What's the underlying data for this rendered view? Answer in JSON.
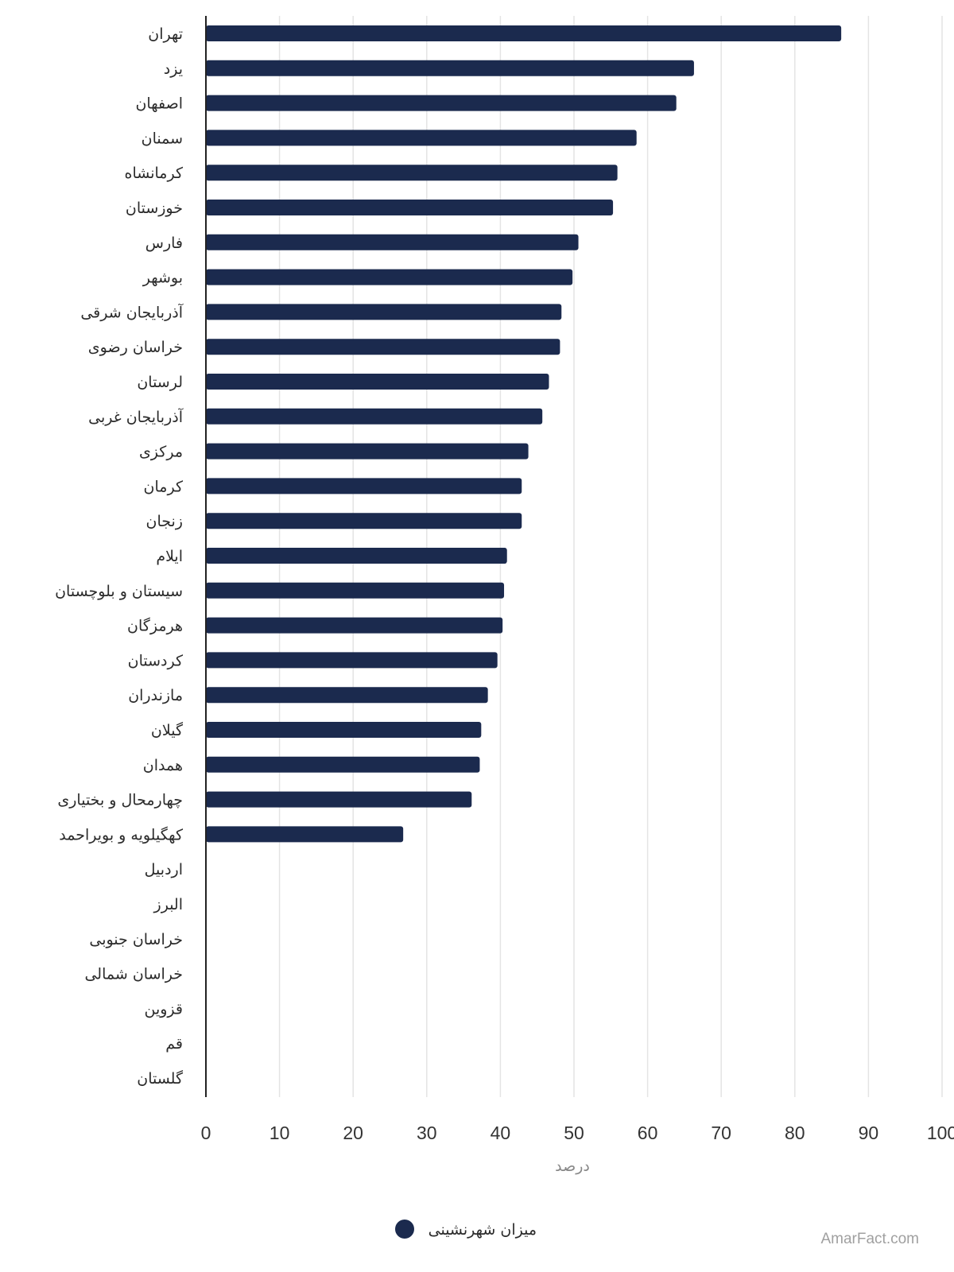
{
  "chart_data": {
    "type": "bar",
    "orientation": "horizontal",
    "categories": [
      "تهران",
      "یزد",
      "اصفهان",
      "سمنان",
      "کرمانشاه",
      "خوزستان",
      "فارس",
      "بوشهر",
      "آذربایجان شرقی",
      "خراسان رضوی",
      "لرستان",
      "آذربایجان غربی",
      "مرکزی",
      "کرمان",
      "زنجان",
      "ایلام",
      "سیستان و بلوچستان",
      "هرمزگان",
      "کردستان",
      "مازندران",
      "گیلان",
      "همدان",
      "چهارمحال و بختیاری",
      "کهگیلویه و بویراحمد",
      "اردبیل",
      "البرز",
      "خراسان جنوبی",
      "خراسان شمالی",
      "قزوین",
      "قم",
      "گلستان"
    ],
    "series": [
      {
        "name": "میزان شهرنشینی",
        "color": "#1b2a4e",
        "values": [
          86.3,
          66.3,
          63.9,
          58.5,
          55.9,
          55.3,
          50.6,
          49.8,
          48.3,
          48.1,
          46.6,
          45.7,
          43.8,
          42.9,
          42.9,
          40.9,
          40.5,
          40.3,
          39.6,
          38.3,
          37.4,
          37.2,
          36.1,
          26.8,
          null,
          null,
          null,
          null,
          null,
          null,
          null
        ]
      }
    ],
    "xlabel": "درصد",
    "xlim": [
      0,
      100
    ],
    "xticks": [
      "0",
      "10",
      "20",
      "30",
      "40",
      "50",
      "60",
      "70",
      "80",
      "90",
      "100"
    ],
    "grid": true,
    "legend_position": "bottom-center"
  },
  "watermark": "AmarFact.com"
}
